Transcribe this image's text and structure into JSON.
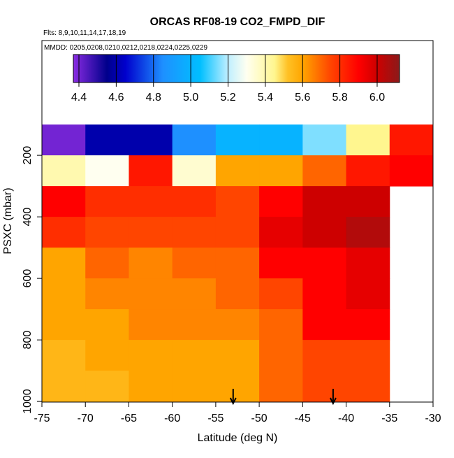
{
  "chart_data": {
    "type": "heatmap",
    "title": "ORCAS RF08-19 CO2_FMPD_DIF",
    "subtitle": "Flts: 8,9,10,11,14,17,18,19",
    "annotation": "MMDD: 0205,0208,0210,0212,0218,0224,0225,0229",
    "xlabel": "Latitude (deg N)",
    "ylabel": "PSXC (mbar)",
    "xlim": [
      -75,
      -30
    ],
    "xticks": [
      -75,
      -70,
      -65,
      -60,
      -55,
      -50,
      -45,
      -40,
      -35,
      -30
    ],
    "ylim": [
      -173,
      1002
    ],
    "y_reversed": true,
    "yticks": [
      200,
      400,
      600,
      800,
      1000
    ],
    "x_bins": [
      -75,
      -70,
      -65,
      -60,
      -55,
      -50,
      -45,
      -40,
      -35,
      -30
    ],
    "y_bins": [
      100,
      200,
      300,
      400,
      500,
      600,
      700,
      800,
      900,
      1000
    ],
    "z": [
      [
        4.4,
        4.6,
        4.6,
        4.85,
        5.0,
        5.0,
        5.15,
        5.45,
        5.85
      ],
      [
        5.4,
        5.3,
        5.85,
        5.35,
        5.6,
        5.6,
        5.7,
        5.85,
        5.9
      ],
      [
        5.9,
        5.8,
        5.8,
        5.8,
        5.75,
        5.9,
        6.0,
        6.0,
        null
      ],
      [
        5.8,
        5.75,
        5.75,
        5.75,
        5.75,
        5.95,
        6.0,
        6.05,
        null
      ],
      [
        5.6,
        5.7,
        5.65,
        5.7,
        5.7,
        5.9,
        5.9,
        5.95,
        null
      ],
      [
        5.6,
        5.65,
        5.65,
        5.65,
        5.7,
        5.75,
        5.9,
        5.95,
        null
      ],
      [
        5.6,
        5.6,
        5.65,
        5.65,
        5.65,
        5.7,
        5.9,
        5.9,
        null
      ],
      [
        5.55,
        5.6,
        5.6,
        5.6,
        5.6,
        5.7,
        5.75,
        5.75,
        null
      ],
      [
        5.55,
        5.55,
        5.6,
        5.6,
        5.6,
        5.7,
        5.75,
        5.75,
        null
      ]
    ],
    "colorbar": {
      "lim": [
        4.37,
        6.12
      ],
      "ticks": [
        4.4,
        4.6,
        4.8,
        {
          "value": 5,
          "label": "5.0"
        },
        5.2,
        5.4,
        5.6,
        5.8,
        {
          "value": 6,
          "label": "6.0"
        }
      ],
      "colorscale": [
        [
          4.37,
          "#8a2be2"
        ],
        [
          4.55,
          "#00008b"
        ],
        [
          4.65,
          "#0000cd"
        ],
        [
          4.85,
          "#1e90ff"
        ],
        [
          5.05,
          "#00bfff"
        ],
        [
          5.2,
          "#bfefff"
        ],
        [
          5.3,
          "#fffff0"
        ],
        [
          5.45,
          "#fff68f"
        ],
        [
          5.52,
          "#ffc125"
        ],
        [
          5.6,
          "#ffa500"
        ],
        [
          5.75,
          "#ff4500"
        ],
        [
          5.9,
          "#ff0000"
        ],
        [
          6.0,
          "#cd0000"
        ],
        [
          6.12,
          "#8b1a1a"
        ]
      ]
    },
    "arrows_x": [
      -53,
      -41.5
    ]
  }
}
